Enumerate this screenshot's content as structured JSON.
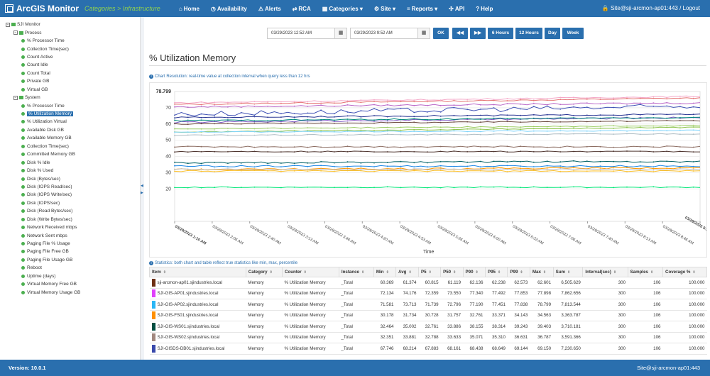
{
  "nav": {
    "brand": "ArcGIS Monitor",
    "crumb": "Categories > Infrastructure",
    "items": [
      {
        "icon": "⌂",
        "label": "Home"
      },
      {
        "icon": "◷",
        "label": "Availability"
      },
      {
        "icon": "⚠",
        "label": "Alerts"
      },
      {
        "icon": "⇄",
        "label": "RCA"
      },
      {
        "icon": "▦",
        "label": "Categories ▾"
      },
      {
        "icon": "⚙",
        "label": "Site ▾"
      },
      {
        "icon": "≡",
        "label": "Reports ▾"
      },
      {
        "icon": "✣",
        "label": "API"
      },
      {
        "icon": "?",
        "label": "Help"
      }
    ],
    "user": "🔒 Site@sji-arcmon-ap01:443 / Logout"
  },
  "tree": [
    {
      "t": "box",
      "lvl": 0,
      "label": "SJI Monitor"
    },
    {
      "t": "box",
      "lvl": 1,
      "label": "Process",
      "fold": true
    },
    {
      "t": "dot",
      "lvl": 2,
      "label": "% Processor Time"
    },
    {
      "t": "dot",
      "lvl": 2,
      "label": "Collection Time(sec)"
    },
    {
      "t": "dot",
      "lvl": 2,
      "label": "Count Active"
    },
    {
      "t": "dot",
      "lvl": 2,
      "label": "Count Idle"
    },
    {
      "t": "dot",
      "lvl": 2,
      "label": "Count Total"
    },
    {
      "t": "dot",
      "lvl": 2,
      "label": "Private GB"
    },
    {
      "t": "dot",
      "lvl": 2,
      "label": "Virtual GB"
    },
    {
      "t": "box",
      "lvl": 1,
      "label": "System",
      "fold": true
    },
    {
      "t": "dot",
      "lvl": 2,
      "label": "% Processor Time"
    },
    {
      "t": "dot",
      "lvl": 2,
      "label": "% Utilization Memory",
      "sel": true
    },
    {
      "t": "dot",
      "lvl": 2,
      "label": "% Utilization Virtual"
    },
    {
      "t": "dot",
      "lvl": 2,
      "label": "Available Disk GB"
    },
    {
      "t": "dot",
      "lvl": 2,
      "label": "Available Memory GB"
    },
    {
      "t": "dot",
      "lvl": 2,
      "label": "Collection Time(sec)"
    },
    {
      "t": "dot",
      "lvl": 2,
      "label": "Committed Memory GB"
    },
    {
      "t": "dot",
      "lvl": 2,
      "label": "Disk % Idle"
    },
    {
      "t": "dot",
      "lvl": 2,
      "label": "Disk % Used"
    },
    {
      "t": "dot",
      "lvl": 2,
      "label": "Disk (Bytes/sec)"
    },
    {
      "t": "dot",
      "lvl": 2,
      "label": "Disk (IOPS Read/sec)"
    },
    {
      "t": "dot",
      "lvl": 2,
      "label": "Disk (IOPS Write/sec)"
    },
    {
      "t": "dot",
      "lvl": 2,
      "label": "Disk (IOPS/sec)"
    },
    {
      "t": "dot",
      "lvl": 2,
      "label": "Disk (Read Bytes/sec)"
    },
    {
      "t": "dot",
      "lvl": 2,
      "label": "Disk (Write Bytes/sec)"
    },
    {
      "t": "dot",
      "lvl": 2,
      "label": "Network Received mbps"
    },
    {
      "t": "dot",
      "lvl": 2,
      "label": "Network Sent mbps"
    },
    {
      "t": "dot",
      "lvl": 2,
      "label": "Paging File % Usage"
    },
    {
      "t": "dot",
      "lvl": 2,
      "label": "Paging File Free GB"
    },
    {
      "t": "dot",
      "lvl": 2,
      "label": "Paging File Usage GB"
    },
    {
      "t": "dot",
      "lvl": 2,
      "label": "Reboot"
    },
    {
      "t": "dot",
      "lvl": 2,
      "label": "Uptime (days)"
    },
    {
      "t": "dot",
      "lvl": 2,
      "label": "Virtual Memory Free GB"
    },
    {
      "t": "dot",
      "lvl": 2,
      "label": "Virtual Memory Usage GB"
    }
  ],
  "controls": {
    "start": "03/29/2023 12:52 AM",
    "end": "03/29/2023 9:52 AM",
    "ok": "OK",
    "prev": "◀◀",
    "next": "▶▶",
    "h6": "6 Hours",
    "h12": "12 Hours",
    "day": "Day",
    "week": "Week"
  },
  "page_title": "% Utilization Memory",
  "resolution_note": "Chart Resolution: real-time value at collection interval when query less than 12 hrs",
  "stats_note": "Statistics: both chart and table reflect true statistics like min, max, percentile",
  "chart_data": {
    "type": "line",
    "ymax_label": "78.799",
    "yticks": [
      20,
      30,
      40,
      50,
      60,
      70
    ],
    "ylim": [
      0,
      80
    ],
    "xlabel": "Time",
    "xticks": [
      "03/29/2023 1:10 AM",
      "03/29/2023 2:06 AM",
      "03/29/2023 2:40 AM",
      "03/29/2023 3:13 AM",
      "03/29/2023 3:46 AM",
      "03/29/2023 4:20 AM",
      "03/29/2023 4:53 AM",
      "03/29/2023 5:26 AM",
      "03/29/2023 6:00 AM",
      "03/29/2023 6:33 AM",
      "03/29/2023 7:06 AM",
      "03/29/2023 7:40 AM",
      "03/29/2023 8:13 AM",
      "03/29/2023 8:46 AM",
      "03/29/2023 9:52 AM"
    ],
    "series": [
      {
        "color": "#e57373",
        "start": 72,
        "end": 76,
        "jitter": 0.4
      },
      {
        "color": "#f4a6c6",
        "start": 73,
        "end": 77,
        "jitter": 0.4
      },
      {
        "color": "#ba68c8",
        "start": 70.5,
        "end": 73,
        "jitter": 0.5
      },
      {
        "color": "#3f51b5",
        "start": 66,
        "end": 71,
        "jitter": 1.6
      },
      {
        "color": "#283593",
        "start": 64,
        "end": 66,
        "jitter": 0.4
      },
      {
        "color": "#7e57c2",
        "start": 61,
        "end": 64,
        "jitter": 0.5
      },
      {
        "color": "#00897b",
        "start": 62,
        "end": 64,
        "jitter": 0.4
      },
      {
        "color": "#6d4c41",
        "start": 60,
        "end": 62,
        "jitter": 0.3
      },
      {
        "color": "#8bc34a",
        "start": 55,
        "end": 58,
        "jitter": 0.3
      },
      {
        "color": "#9ccc65",
        "start": 57,
        "end": 59,
        "jitter": 0.3
      },
      {
        "color": "#81d4fa",
        "start": 55,
        "end": 56,
        "jitter": 0.3
      },
      {
        "color": "#b0bec5",
        "start": 53,
        "end": 54,
        "jitter": 0.3
      },
      {
        "color": "#8d6e63",
        "start": 46,
        "end": 46,
        "jitter": 0.4
      },
      {
        "color": "#4e342e",
        "start": 43,
        "end": 43,
        "jitter": 0.3
      },
      {
        "color": "#006064",
        "start": 36,
        "end": 37,
        "jitter": 0.5
      },
      {
        "color": "#1e88e5",
        "start": 34,
        "end": 34,
        "jitter": 0.5
      },
      {
        "color": "#ff9800",
        "start": 32,
        "end": 33,
        "jitter": 0.5
      },
      {
        "color": "#bdbdbd",
        "start": 32,
        "end": 32,
        "jitter": 0.4
      },
      {
        "color": "#fbc02d",
        "start": 31,
        "end": 31,
        "jitter": 0.4
      },
      {
        "color": "#00e676",
        "start": 21,
        "end": 21,
        "jitter": 0.3
      }
    ]
  },
  "table": {
    "headers": [
      "Item",
      "Category",
      "Counter",
      "Instance",
      "Min",
      "Avg",
      "P5",
      "P50",
      "P90",
      "P95",
      "P99",
      "Max",
      "Sum",
      "Interval(sec)",
      "Samples",
      "Coverage %"
    ],
    "rows": [
      {
        "color": "#6d2f12",
        "cells": [
          "sji-arcmon-ap01.sjindustries.local",
          "Memory",
          "% Utilization Memory",
          "_Total",
          "60.369",
          "61.374",
          "60.815",
          "61.119",
          "62.136",
          "62.238",
          "62.573",
          "62.601",
          "6,505.629",
          "300",
          "106",
          "100.000"
        ]
      },
      {
        "color": "#e040fb",
        "cells": [
          "SJI-GIS-AP01.sjindustries.local",
          "Memory",
          "% Utilization Memory",
          "_Total",
          "72.134",
          "74.176",
          "72.359",
          "73.550",
          "77.340",
          "77.492",
          "77.853",
          "77.898",
          "7,862.656",
          "300",
          "106",
          "100.000"
        ]
      },
      {
        "color": "#29b6f6",
        "cells": [
          "SJI-GIS-AP02.sjindustries.local",
          "Memory",
          "% Utilization Memory",
          "_Total",
          "71.581",
          "73.713",
          "71.739",
          "72.796",
          "77.190",
          "77.451",
          "77.838",
          "78.799",
          "7,813.544",
          "300",
          "106",
          "100.000"
        ]
      },
      {
        "color": "#ff8f00",
        "cells": [
          "SJI-GIS-FS01.sjindustries.local",
          "Memory",
          "% Utilization Memory",
          "_Total",
          "30.178",
          "31.734",
          "30.728",
          "31.757",
          "32.761",
          "33.371",
          "34.143",
          "34.563",
          "3,363.787",
          "300",
          "106",
          "100.000"
        ]
      },
      {
        "color": "#004d40",
        "cells": [
          "SJI-GIS-WS01.sjindustries.local",
          "Memory",
          "% Utilization Memory",
          "_Total",
          "32.464",
          "35.002",
          "32.761",
          "33.886",
          "38.155",
          "38.314",
          "39.243",
          "39.403",
          "3,710.181",
          "300",
          "106",
          "100.000"
        ]
      },
      {
        "color": "#a1887f",
        "cells": [
          "SJI-GIS-WS02.sjindustries.local",
          "Memory",
          "% Utilization Memory",
          "_Total",
          "32.351",
          "33.881",
          "32.788",
          "33.633",
          "35.071",
          "35.310",
          "36.631",
          "36.787",
          "3,591.366",
          "300",
          "106",
          "100.000"
        ]
      },
      {
        "color": "#3949ab",
        "cells": [
          "SJI-GISDS-DB01.sjindustries.local",
          "Memory",
          "% Utilization Memory",
          "_Total",
          "67.746",
          "68.214",
          "67.883",
          "68.161",
          "68.438",
          "68.649",
          "69.144",
          "69.150",
          "7,230.650",
          "300",
          "106",
          "100.000"
        ]
      }
    ]
  },
  "footer": {
    "version": "Version: 10.0.1",
    "site": "Site@sji-arcmon-ap01:443"
  }
}
